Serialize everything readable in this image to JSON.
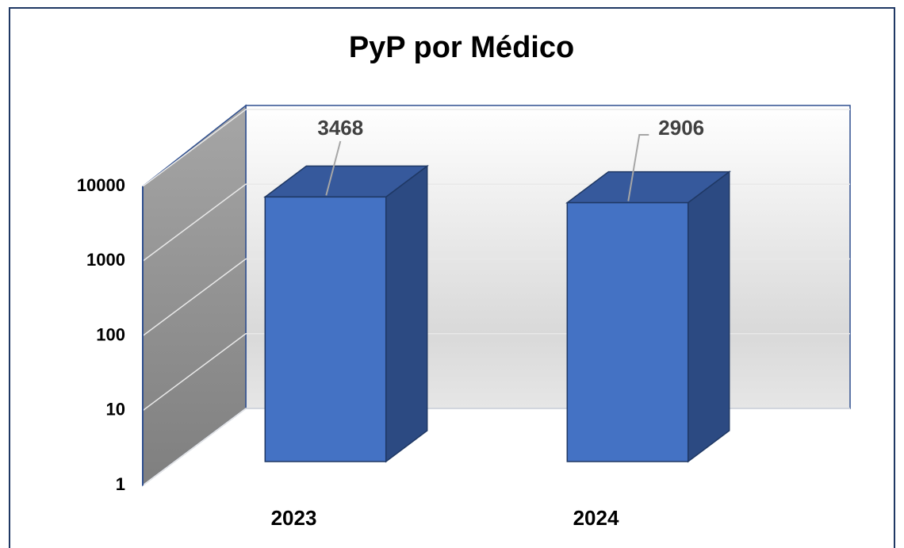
{
  "chart_data": {
    "type": "bar3d",
    "title": "PyP por Médico",
    "categories": [
      "2023",
      "2024"
    ],
    "values": [
      3468,
      2906
    ],
    "color": "#4472c4",
    "log_scale": true,
    "ylim": [
      1,
      10000
    ],
    "yticks": [
      1,
      10,
      100,
      1000,
      10000
    ],
    "grid": true
  }
}
